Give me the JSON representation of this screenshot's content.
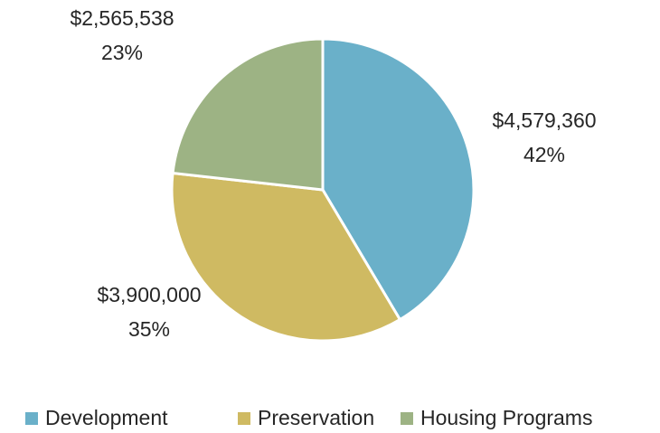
{
  "chart_data": {
    "type": "pie",
    "categories": [
      "Development",
      "Preservation",
      "Housing Programs"
    ],
    "values": [
      4579360,
      3900000,
      2565538
    ],
    "value_labels": [
      "$4,579,360",
      "$3,900,000",
      "$2,565,538"
    ],
    "percent_labels": [
      "42%",
      "35%",
      "23%"
    ],
    "colors": [
      "#6ab0c9",
      "#cfba62",
      "#9db384"
    ],
    "legend": "bottom"
  }
}
